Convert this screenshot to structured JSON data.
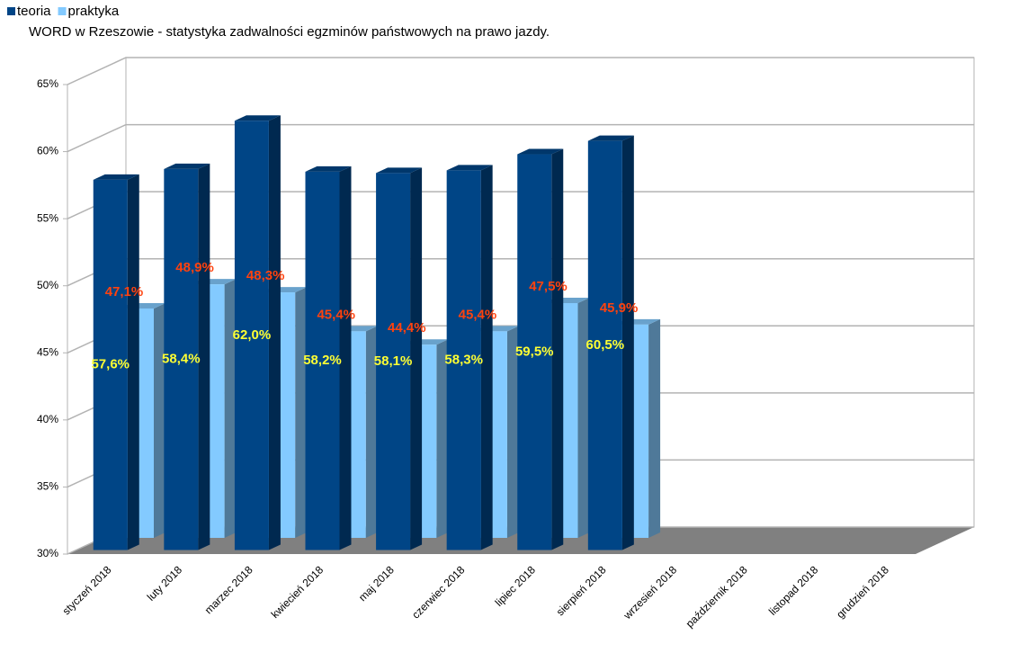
{
  "chart_data": {
    "type": "bar3d",
    "title": "WORD w Rzeszowie - statystyka zadwalności egzminów państwowych na prawo jazdy.",
    "categories": [
      "styczeń 2018",
      "luty 2018",
      "marzec 2018",
      "kwiecień 2018",
      "maj 2018",
      "czerwiec 2018",
      "lipiec 2018",
      "sierpień 2018",
      "wrzesień 2018",
      "październik 2018",
      "listopad 2018",
      "grudzień 2018"
    ],
    "series": [
      {
        "name": "teoria",
        "color": "#004586",
        "values": [
          57.6,
          58.4,
          62.0,
          58.2,
          58.1,
          58.3,
          59.5,
          60.5,
          null,
          null,
          null,
          null
        ],
        "value_labels": [
          "57,6%",
          "58,4%",
          "62,0%",
          "58,2%",
          "58,1%",
          "58,3%",
          "59,5%",
          "60,5%",
          null,
          null,
          null,
          null
        ]
      },
      {
        "name": "praktyka",
        "color": "#83caff",
        "values": [
          47.1,
          48.9,
          48.3,
          45.4,
          44.4,
          45.4,
          47.5,
          45.9,
          null,
          null,
          null,
          null
        ],
        "value_labels": [
          "47,1%",
          "48,9%",
          "48,3%",
          "45,4%",
          "44,4%",
          "45,4%",
          "47,5%",
          "45,9%",
          null,
          null,
          null,
          null
        ]
      }
    ],
    "ylim": [
      30,
      65
    ],
    "yticks": [
      {
        "value": 30,
        "label": "30%"
      },
      {
        "value": 35,
        "label": "35%"
      },
      {
        "value": 40,
        "label": "40%"
      },
      {
        "value": 45,
        "label": "45%"
      },
      {
        "value": 50,
        "label": "50%"
      },
      {
        "value": 55,
        "label": "55%"
      },
      {
        "value": 60,
        "label": "60%"
      },
      {
        "value": 65,
        "label": "65%"
      }
    ],
    "grid": true,
    "legend": "top-left"
  }
}
